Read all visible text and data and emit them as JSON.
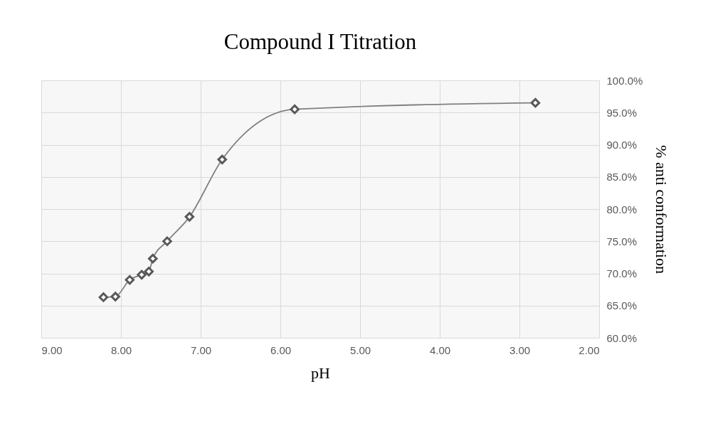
{
  "chart_data": {
    "type": "line",
    "title": "Compound I Titration",
    "xlabel": "pH",
    "y2label": "% anti conformation",
    "x": [
      8.22,
      8.07,
      7.89,
      7.74,
      7.65,
      7.6,
      7.42,
      7.14,
      6.73,
      5.82,
      2.8
    ],
    "series": [
      {
        "color": "#595959",
        "axis": "y2",
        "values": [
          66.3,
          66.4,
          69.0,
          69.8,
          70.3,
          72.3,
          75.0,
          78.8,
          87.7,
          95.5,
          96.5
        ]
      }
    ],
    "xlim": [
      9,
      2
    ],
    "xticks": [
      {
        "value": 9,
        "label": "9.00"
      },
      {
        "value": 8,
        "label": "8.00"
      },
      {
        "value": 7,
        "label": "7.00"
      },
      {
        "value": 6,
        "label": "6.00"
      },
      {
        "value": 5,
        "label": "5.00"
      },
      {
        "value": 4,
        "label": "4.00"
      },
      {
        "value": 3,
        "label": "3.00"
      },
      {
        "value": 2,
        "label": "2.00"
      }
    ],
    "y2lim": [
      60,
      100
    ],
    "y2ticks": [
      {
        "value": 60,
        "label": "60.0%"
      },
      {
        "value": 65,
        "label": "65.0%"
      },
      {
        "value": 70,
        "label": "70.0%"
      },
      {
        "value": 75,
        "label": "75.0%"
      },
      {
        "value": 80,
        "label": "80.0%"
      },
      {
        "value": 85,
        "label": "85.0%"
      },
      {
        "value": 90,
        "label": "90.0%"
      },
      {
        "value": 95,
        "label": "95.0%"
      },
      {
        "value": 100,
        "label": "100.0%"
      }
    ],
    "grid": true,
    "marker": "diamond",
    "line_style": "solid"
  }
}
